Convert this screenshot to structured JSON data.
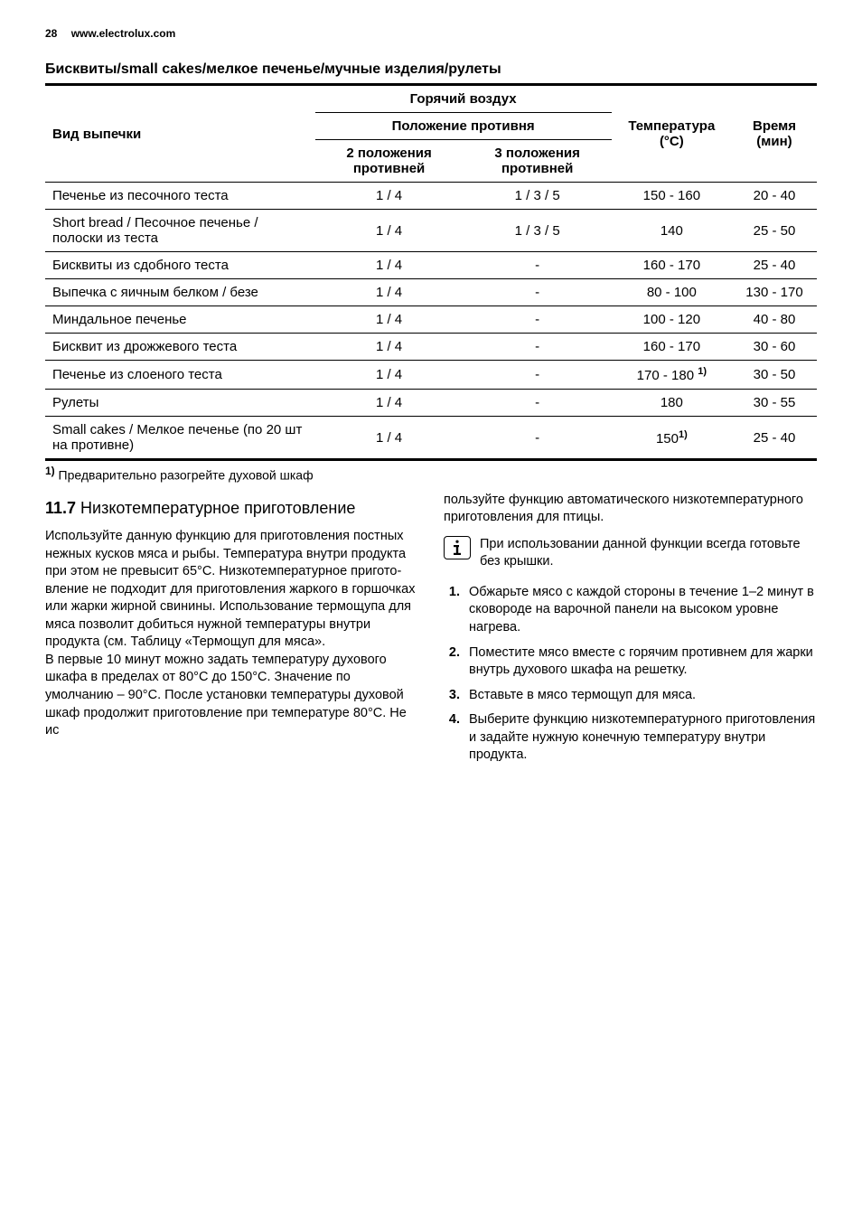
{
  "header": {
    "page_number": "28",
    "site": "www.electrolux.com"
  },
  "table": {
    "title": "Бисквиты/small cakes/мелкое печенье/мучные изделия/рулеты",
    "head": {
      "dish": "Вид выпечки",
      "hot_air": "Горячий воздух",
      "rack_position": "Положение противня",
      "pos2": "2 положения противней",
      "pos3": "3 положения противней",
      "temp": "Температура (°C)",
      "time": "Время (мин)"
    },
    "rows": [
      {
        "dish": "Печенье из пе­сочного теста",
        "p2": "1 / 4",
        "p3": "1 / 3 / 5",
        "temp": "150 - 160",
        "time": "20 - 40"
      },
      {
        "dish": "Short bread / Пе­сочное пече­нье / полоски из теста",
        "p2": "1 / 4",
        "p3": "1 / 3 / 5",
        "temp": "140",
        "time": "25 - 50"
      },
      {
        "dish": "Бисквиты из сдобного теста",
        "p2": "1 / 4",
        "p3": "-",
        "temp": "160 - 170",
        "time": "25 - 40"
      },
      {
        "dish": "Выпечка с яич­ным белком / безе",
        "p2": "1 / 4",
        "p3": "-",
        "temp": "80 - 100",
        "time": "130 - 170"
      },
      {
        "dish": "Миндальное пе­ченье",
        "p2": "1 / 4",
        "p3": "-",
        "temp": "100 - 120",
        "time": "40 - 80"
      },
      {
        "dish": "Бисквит из дрожжевого теста",
        "p2": "1 / 4",
        "p3": "-",
        "temp": "160 - 170",
        "time": "30 - 60"
      },
      {
        "dish": "Печенье из слоеного теста",
        "p2": "1 / 4",
        "p3": "-",
        "temp": "170 - 180 ",
        "tempnote": "1)",
        "time": "30 - 50"
      },
      {
        "dish": "Рулеты",
        "p2": "1 / 4",
        "p3": "-",
        "temp": "180",
        "time": "30 - 55"
      },
      {
        "dish": "Small cakes / Мелкое печенье (по 20 шт на противне)",
        "p2": "1 / 4",
        "p3": "-",
        "temp": "150",
        "tempnote": "1)",
        "time": "25 - 40"
      }
    ],
    "footnote_mark": "1)",
    "footnote": " Предварительно разогрейте духовой шкаф"
  },
  "section": {
    "number": "11.7",
    "title": " Низкотемпературное приготовление",
    "left_para": "Используйте данную функцию для приготов­ления постных нежных кусков мяса и рыбы. Температура внутри продукта при этом не превысит 65°C. Низкотемпературное пригото­вление не подходит для приготовления жар­кого в горшочках или жарки жирной свинины. Использование термощупа для мяса позволит добиться нужной температуры внутри продук­та (см. Таблицу «Термощуп для мяса».\nВ первые 10 минут можно задать температуру духового шкафа в пределах от 80°C до 150°C. Значение по умолчанию – 90°C. После уста­новки температуры духовой шкаф продолжит приготовление при температуре 80°C. Не ис­",
    "right_intro": "пользуйте функцию автоматического низко­температурного приготовления для птицы.",
    "info_text": "При использовании данной функции всегда готовьте без крышки.",
    "steps": [
      "Обжарьте мясо с каждой стороны в тече­ние 1–2 минут в сковороде на варочной панели на высоком уровне нагрева.",
      "Поместите мясо вместе с горячим про­тивнем для жарки внутрь духового шка­фа на решетку.",
      "Вставьте в мясо термощуп для мяса.",
      "Выберите функцию низкотемпературного приготовления и задайте нужную конеч­ную температуру внутри продукта."
    ]
  }
}
